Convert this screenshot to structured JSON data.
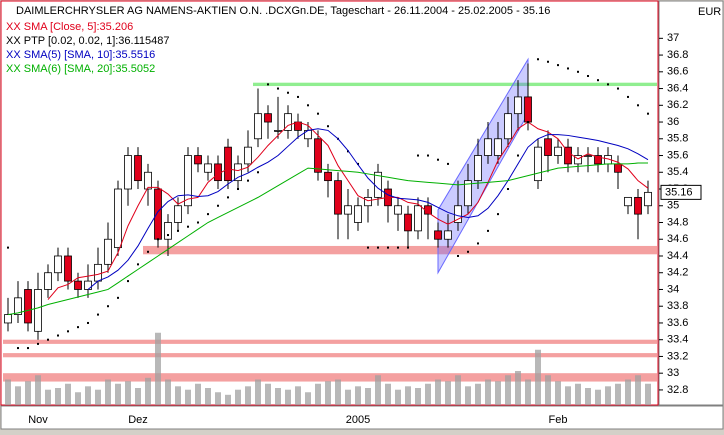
{
  "chart_data": {
    "type": "candlestick",
    "title": "DAIMLERCHRYSLER AG NAMENS-AKTIEN O.N. .DCXGn.DE, Tageschart - 26.11.2004 - 25.02.2005 - 35.16",
    "currency": "EUR",
    "last_price": 35.16,
    "up_color": "#ffffff",
    "down_color": "#e0001b",
    "categories": [
      null,
      null,
      null,
      "Nov",
      null,
      null,
      null,
      null,
      null,
      null,
      null,
      null,
      null,
      "Dez",
      null,
      null,
      null,
      null,
      null,
      null,
      null,
      null,
      null,
      null,
      null,
      null,
      null,
      null,
      null,
      null,
      null,
      null,
      null,
      null,
      null,
      "2005",
      null,
      null,
      null,
      null,
      null,
      null,
      null,
      null,
      null,
      null,
      null,
      null,
      null,
      null,
      null,
      null,
      null,
      null,
      null,
      "Feb",
      null,
      null,
      null,
      null,
      null,
      null,
      null,
      null,
      null
    ],
    "ohlc": [
      [
        33.6,
        33.9,
        33.5,
        33.7
      ],
      [
        33.7,
        34.1,
        33.6,
        33.9
      ],
      [
        34.0,
        34.1,
        33.5,
        33.6
      ],
      [
        33.5,
        34.2,
        33.4,
        34.0
      ],
      [
        34.0,
        34.3,
        33.9,
        34.2
      ],
      [
        34.2,
        34.5,
        34.1,
        34.4
      ],
      [
        34.4,
        34.5,
        34.0,
        34.1
      ],
      [
        34.1,
        34.2,
        33.9,
        34.0
      ],
      [
        34.0,
        34.3,
        33.9,
        34.1
      ],
      [
        34.1,
        34.5,
        34.0,
        34.3
      ],
      [
        34.3,
        34.8,
        34.2,
        34.6
      ],
      [
        34.5,
        35.3,
        34.4,
        35.2
      ],
      [
        35.2,
        35.7,
        35.0,
        35.6
      ],
      [
        35.6,
        35.7,
        35.2,
        35.3
      ],
      [
        35.2,
        35.5,
        35.0,
        35.4
      ],
      [
        35.2,
        35.3,
        34.5,
        34.6
      ],
      [
        34.6,
        34.9,
        34.4,
        34.8
      ],
      [
        34.8,
        35.1,
        34.7,
        35.0
      ],
      [
        35.0,
        35.7,
        34.9,
        35.6
      ],
      [
        35.6,
        35.7,
        35.4,
        35.5
      ],
      [
        35.4,
        35.6,
        35.3,
        35.5
      ],
      [
        35.5,
        35.6,
        35.2,
        35.3
      ],
      [
        35.7,
        35.8,
        35.2,
        35.3
      ],
      [
        35.3,
        35.6,
        35.2,
        35.5
      ],
      [
        35.5,
        35.9,
        35.4,
        35.7
      ],
      [
        35.8,
        36.4,
        35.7,
        36.1
      ],
      [
        36.1,
        36.2,
        35.8,
        36.0
      ],
      [
        35.9,
        36.3,
        35.8,
        35.9
      ],
      [
        35.9,
        36.2,
        35.8,
        36.1
      ],
      [
        36.0,
        36.1,
        35.8,
        35.9
      ],
      [
        35.8,
        36.0,
        35.7,
        35.9
      ],
      [
        35.8,
        35.9,
        35.3,
        35.4
      ],
      [
        35.4,
        35.5,
        35.1,
        35.3
      ],
      [
        35.3,
        35.4,
        34.6,
        34.9
      ],
      [
        34.9,
        35.2,
        34.6,
        35.0
      ],
      [
        34.8,
        35.1,
        34.7,
        35.0
      ],
      [
        35.0,
        35.2,
        34.8,
        35.1
      ],
      [
        35.1,
        35.5,
        35.0,
        35.4
      ],
      [
        35.2,
        35.3,
        34.8,
        35.0
      ],
      [
        34.9,
        35.1,
        34.7,
        35.0
      ],
      [
        34.9,
        35.0,
        34.5,
        34.7
      ],
      [
        34.7,
        35.1,
        34.6,
        35.0
      ],
      [
        35.0,
        35.1,
        34.6,
        34.9
      ],
      [
        34.7,
        34.8,
        34.5,
        34.6
      ],
      [
        34.6,
        34.9,
        34.5,
        34.7
      ],
      [
        34.8,
        35.3,
        34.7,
        35.0
      ],
      [
        35.0,
        35.5,
        34.9,
        35.3
      ],
      [
        35.3,
        35.8,
        35.2,
        35.6
      ],
      [
        35.6,
        36.0,
        35.5,
        35.8
      ],
      [
        35.6,
        36.0,
        35.5,
        35.8
      ],
      [
        35.8,
        36.3,
        35.7,
        36.1
      ],
      [
        36.1,
        36.5,
        35.9,
        36.3
      ],
      [
        36.3,
        36.7,
        35.9,
        36.0
      ],
      [
        35.3,
        35.8,
        35.2,
        35.7
      ],
      [
        35.8,
        35.9,
        35.4,
        35.6
      ],
      [
        35.6,
        35.8,
        35.5,
        35.7
      ],
      [
        35.7,
        35.8,
        35.4,
        35.5
      ],
      [
        35.5,
        35.7,
        35.4,
        35.6
      ],
      [
        35.6,
        35.7,
        35.4,
        35.6
      ],
      [
        35.6,
        35.7,
        35.4,
        35.5
      ],
      [
        35.5,
        35.7,
        35.4,
        35.6
      ],
      [
        35.5,
        35.6,
        35.2,
        35.4
      ],
      [
        35.0,
        35.1,
        34.9,
        35.1
      ],
      [
        35.1,
        35.2,
        34.6,
        34.9
      ],
      [
        35.0,
        35.3,
        34.9,
        35.16
      ]
    ],
    "series": [
      {
        "name": "XX SMA [Close, 5]:35.206",
        "color": "#e0001b",
        "style": "line",
        "values": [
          null,
          null,
          null,
          null,
          33.88,
          34.02,
          34.06,
          34.14,
          34.16,
          34.18,
          34.22,
          34.44,
          34.76,
          35.0,
          35.22,
          35.22,
          35.14,
          35.02,
          35.08,
          35.1,
          35.28,
          35.38,
          35.44,
          35.42,
          35.46,
          35.58,
          35.72,
          35.84,
          35.96,
          36.0,
          35.96,
          35.84,
          35.72,
          35.48,
          35.3,
          35.12,
          35.06,
          35.08,
          35.1,
          35.1,
          35.04,
          35.02,
          34.92,
          34.84,
          34.78,
          34.84,
          34.9,
          35.04,
          35.28,
          35.54,
          35.72,
          35.92,
          36.0,
          35.92,
          35.88,
          35.8,
          35.64,
          35.56,
          35.62,
          35.58,
          35.56,
          35.52,
          35.44,
          35.3,
          35.21
        ]
      },
      {
        "name": "XX PTP [0.02, 0.02, 1]:36.115487",
        "color": "#000000",
        "style": "dots",
        "values": [
          34.5,
          33.3,
          33.3,
          33.35,
          33.4,
          33.45,
          33.5,
          33.55,
          33.6,
          33.7,
          33.8,
          33.9,
          34.1,
          34.3,
          34.45,
          34.6,
          34.65,
          34.7,
          34.75,
          34.8,
          34.9,
          35.0,
          35.1,
          35.2,
          35.3,
          35.4,
          36.45,
          36.4,
          36.35,
          36.3,
          36.2,
          36.1,
          35.95,
          35.8,
          35.65,
          35.5,
          34.5,
          34.5,
          34.5,
          34.5,
          34.5,
          35.6,
          35.6,
          35.55,
          35.5,
          34.4,
          34.45,
          34.55,
          34.7,
          34.9,
          35.2,
          35.6,
          36.0,
          36.75,
          36.72,
          36.68,
          36.64,
          36.6,
          36.55,
          36.5,
          36.45,
          36.4,
          36.3,
          36.2,
          36.1
        ]
      },
      {
        "name": "XX SMA(5) [SMA, 10]:35.5516",
        "color": "#0000c0",
        "style": "line",
        "values": [
          null,
          null,
          null,
          null,
          null,
          null,
          null,
          null,
          34.0,
          34.1,
          34.15,
          34.23,
          34.35,
          34.52,
          34.73,
          34.93,
          35.05,
          35.12,
          35.13,
          35.11,
          35.12,
          35.17,
          35.26,
          35.34,
          35.39,
          35.46,
          35.52,
          35.6,
          35.71,
          35.82,
          35.9,
          35.92,
          35.9,
          35.8,
          35.66,
          35.49,
          35.33,
          35.21,
          35.13,
          35.09,
          35.08,
          35.07,
          35.04,
          34.98,
          34.92,
          34.88,
          34.86,
          34.88,
          34.97,
          35.12,
          35.3,
          35.5,
          35.7,
          35.8,
          35.85,
          35.85,
          35.84,
          35.82,
          35.8,
          35.78,
          35.75,
          35.72,
          35.68,
          35.62,
          35.55
        ]
      },
      {
        "name": "XX SMA(6) [SMA, 20]:35.5052",
        "color": "#00b000",
        "style": "line",
        "values": [
          33.7,
          33.72,
          33.75,
          33.78,
          33.82,
          33.85,
          33.88,
          33.91,
          33.94,
          33.97,
          34.0,
          34.08,
          34.16,
          34.24,
          34.32,
          34.4,
          34.48,
          34.56,
          34.64,
          34.72,
          34.8,
          34.86,
          34.92,
          34.98,
          35.04,
          35.1,
          35.17,
          35.24,
          35.31,
          35.38,
          35.45,
          35.44,
          35.43,
          35.42,
          35.41,
          35.4,
          35.38,
          35.36,
          35.34,
          35.32,
          35.3,
          35.29,
          35.28,
          35.27,
          35.26,
          35.25,
          35.26,
          35.27,
          35.28,
          35.29,
          35.3,
          35.33,
          35.36,
          35.39,
          35.42,
          35.45,
          35.46,
          35.47,
          35.48,
          35.49,
          35.5,
          35.5,
          35.5,
          35.51,
          35.51
        ]
      }
    ],
    "volume": [
      30,
      22,
      28,
      35,
      18,
      20,
      25,
      15,
      22,
      18,
      30,
      25,
      28,
      20,
      32,
      85,
      30,
      22,
      18,
      25,
      20,
      15,
      12,
      18,
      22,
      30,
      25,
      20,
      18,
      22,
      15,
      25,
      28,
      30,
      18,
      22,
      20,
      35,
      25,
      18,
      22,
      20,
      25,
      30,
      28,
      35,
      22,
      25,
      30,
      28,
      35,
      40,
      30,
      65,
      35,
      28,
      22,
      25,
      20,
      18,
      22,
      25,
      30,
      35,
      25
    ],
    "volume_color": "#a0a0a0",
    "volume_lim": [
      0,
      100
    ],
    "zones": [
      {
        "low": 36.43,
        "high": 36.47,
        "start": 25,
        "color": "#90ee90"
      },
      {
        "low": 34.42,
        "high": 34.52,
        "start": 14,
        "color": "#f4a0a0"
      },
      {
        "low": 33.35,
        "high": 33.4,
        "start": 0,
        "color": "#f4a0a0"
      },
      {
        "low": 33.19,
        "high": 33.24,
        "start": 0,
        "color": "#f4a0a0"
      },
      {
        "low": 32.9,
        "high": 33.0,
        "start": 0,
        "color": "#f4a0a0"
      }
    ],
    "channel": {
      "start": 43,
      "end": 52,
      "lower": [
        34.2,
        36.1
      ],
      "upper": [
        34.95,
        36.75
      ],
      "color": "#6a6aff"
    },
    "ylim": [
      32.62,
      37.41
    ],
    "yticks": [
      32.8,
      33,
      33.2,
      33.4,
      33.6,
      33.8,
      34,
      34.2,
      34.4,
      34.6,
      34.8,
      35,
      35.2,
      35.4,
      35.6,
      35.8,
      36,
      36.2,
      36.4,
      36.6,
      36.8,
      37
    ]
  }
}
